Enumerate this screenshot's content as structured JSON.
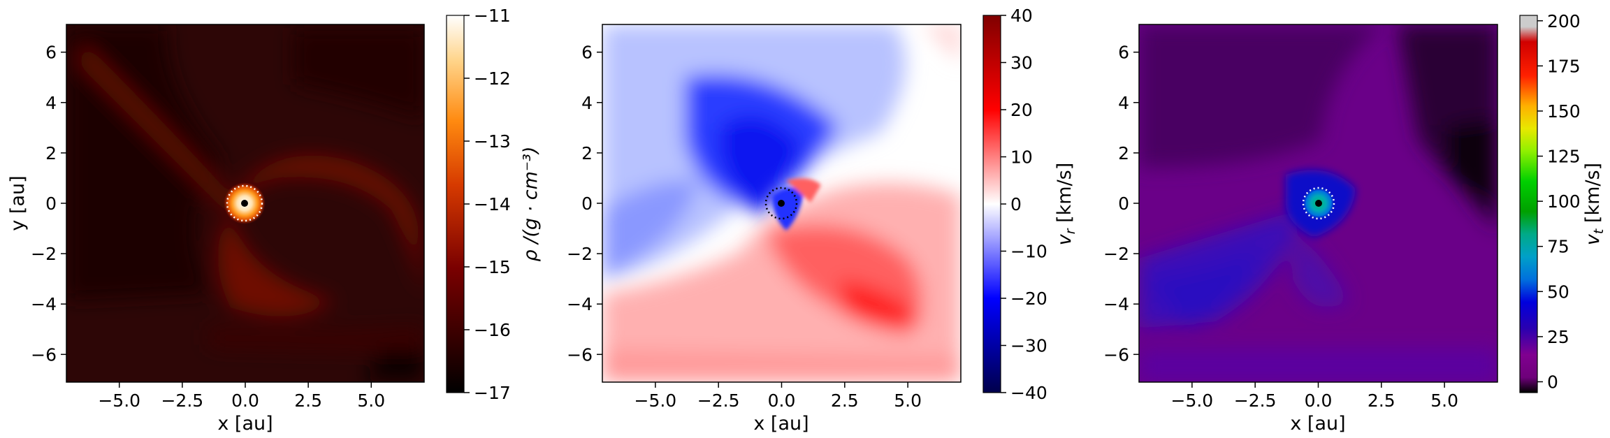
{
  "chart_data": [
    {
      "type": "heatmap",
      "quantity": "density",
      "xlabel": "x [au]",
      "ylabel": "y [au]",
      "xlim": [
        -7.1,
        7.1
      ],
      "ylim": [
        -7.1,
        7.1
      ],
      "xticks": [
        -5.0,
        -2.5,
        0.0,
        2.5,
        5.0
      ],
      "xtick_labels": [
        "−5.0",
        "−2.5",
        "0.0",
        "2.5",
        "5.0"
      ],
      "yticks": [
        -6,
        -4,
        -2,
        0,
        2,
        4,
        6
      ],
      "ytick_labels": [
        "−6",
        "−4",
        "−2",
        "0",
        "2",
        "4",
        "6"
      ],
      "marker_circle": {
        "center": [
          0,
          0
        ],
        "radius": 0.7,
        "color": "#ffffff",
        "style": "dotted"
      },
      "central_dot": {
        "center": [
          0,
          0
        ],
        "color": "#000000"
      },
      "colormap": "gist_heat",
      "colorbar": {
        "label_rich": "ρ /(g · cm⁻³)",
        "range": [
          -17,
          -11
        ],
        "ticks": [
          -17,
          -16,
          -15,
          -14,
          -13,
          -12,
          -11
        ],
        "tick_labels": [
          "−17",
          "−16",
          "−15",
          "−14",
          "−13",
          "−12",
          "−11"
        ]
      }
    },
    {
      "type": "heatmap",
      "quantity": "radial velocity",
      "xlabel": "x [au]",
      "ylabel": "",
      "xlim": [
        -7.1,
        7.1
      ],
      "ylim": [
        -7.1,
        7.1
      ],
      "xticks": [
        -5.0,
        -2.5,
        0.0,
        2.5,
        5.0
      ],
      "xtick_labels": [
        "−5.0",
        "−2.5",
        "0.0",
        "2.5",
        "5.0"
      ],
      "yticks": [
        -6,
        -4,
        -2,
        0,
        2,
        4,
        6
      ],
      "ytick_labels": [
        "−6",
        "−4",
        "−2",
        "0",
        "2",
        "4",
        "6"
      ],
      "marker_circle": {
        "center": [
          0,
          0
        ],
        "radius": 0.6,
        "color": "#000000",
        "style": "dotted"
      },
      "central_dot": {
        "center": [
          0,
          0
        ],
        "color": "#000000"
      },
      "colormap": "seismic",
      "colorbar": {
        "label_main": "v",
        "label_sub": "r",
        "label_units": " [km/s]",
        "range": [
          -40,
          40
        ],
        "ticks": [
          -40,
          -30,
          -20,
          -10,
          0,
          10,
          20,
          30,
          40
        ],
        "tick_labels": [
          "−40",
          "−30",
          "−20",
          "−10",
          "0",
          "10",
          "20",
          "30",
          "40"
        ]
      }
    },
    {
      "type": "heatmap",
      "quantity": "tangential velocity",
      "xlabel": "x [au]",
      "ylabel": "",
      "xlim": [
        -7.1,
        7.1
      ],
      "ylim": [
        -7.1,
        7.1
      ],
      "xticks": [
        -5.0,
        -2.5,
        0.0,
        2.5,
        5.0
      ],
      "xtick_labels": [
        "−5.0",
        "−2.5",
        "0.0",
        "2.5",
        "5.0"
      ],
      "yticks": [
        -6,
        -4,
        -2,
        0,
        2,
        4,
        6
      ],
      "ytick_labels": [
        "−6",
        "−4",
        "−2",
        "0",
        "2",
        "4",
        "6"
      ],
      "marker_circle": {
        "center": [
          0,
          0
        ],
        "radius": 0.6,
        "color": "#ffffff",
        "style": "dotted"
      },
      "central_dot": {
        "center": [
          0,
          0
        ],
        "color": "#000000"
      },
      "colormap": "nipy_spectral",
      "colorbar": {
        "label_main": "v",
        "label_sub": "t",
        "label_units": " [km/s]",
        "range": [
          -6,
          203
        ],
        "ticks": [
          0,
          25,
          50,
          75,
          100,
          125,
          150,
          175,
          200
        ],
        "tick_labels": [
          "0",
          "25",
          "50",
          "75",
          "100",
          "125",
          "150",
          "175",
          "200"
        ]
      }
    }
  ]
}
